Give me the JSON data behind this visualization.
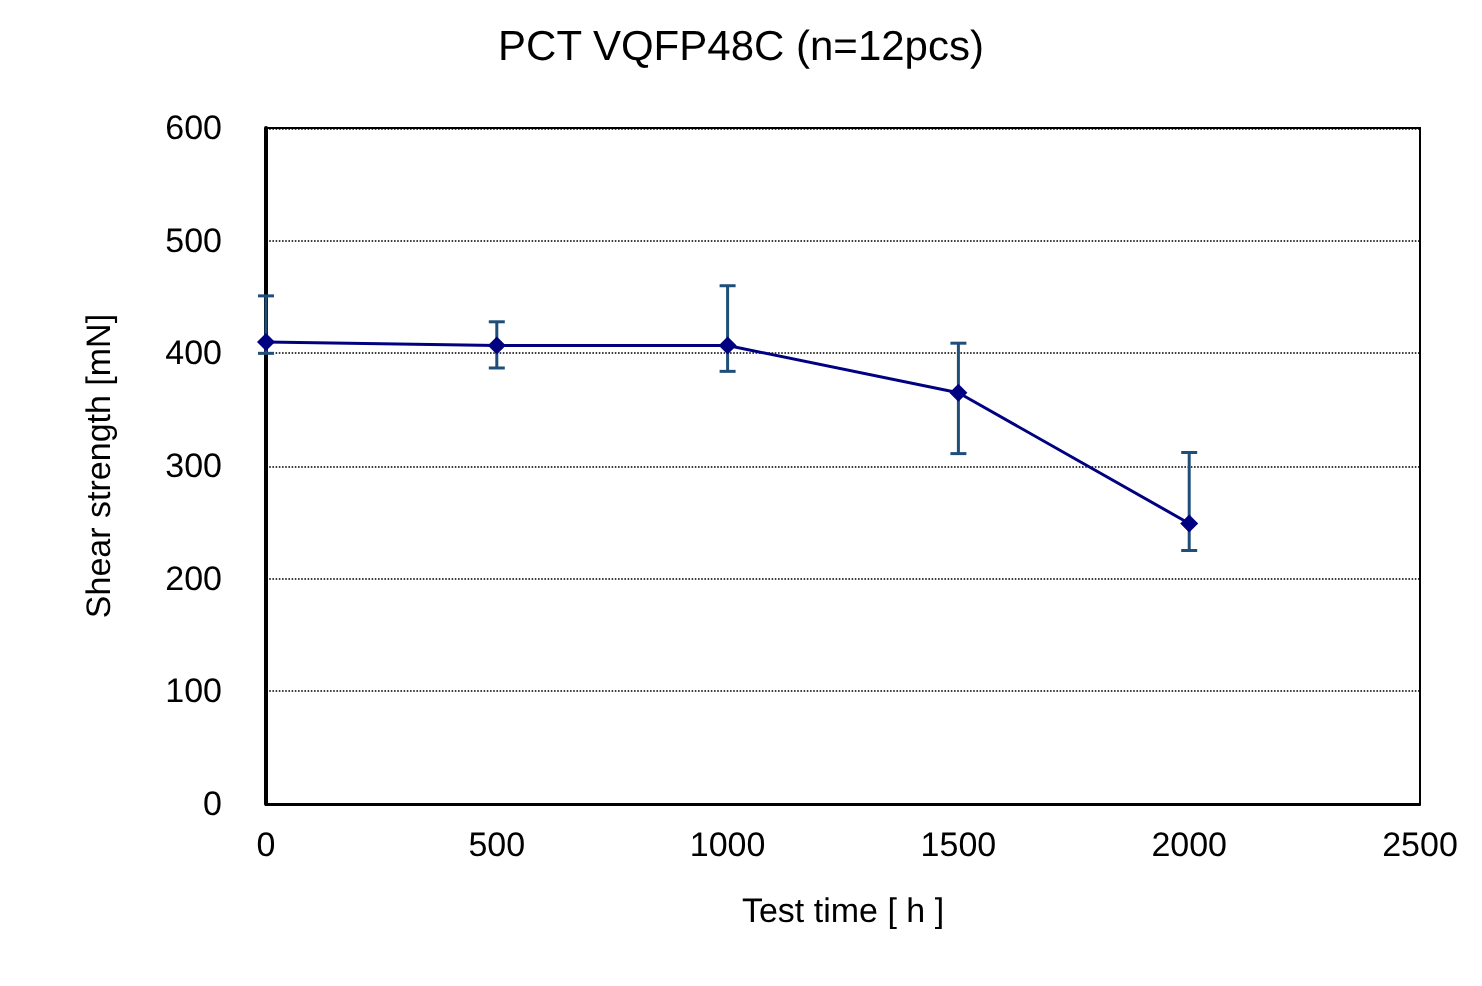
{
  "chart_data": {
    "type": "line",
    "title": "PCT VQFP48C (n=12pcs)",
    "xlabel": "Test time [ h ]",
    "ylabel": "Shear strength [mN]",
    "x": [
      0,
      500,
      1000,
      1500,
      2000
    ],
    "series": [
      {
        "color": "#000080",
        "values": [
          410,
          407,
          407,
          365,
          249
        ],
        "errors": [
          [
            400,
            451
          ],
          [
            387,
            428
          ],
          [
            384,
            460
          ],
          [
            311,
            409
          ],
          [
            225,
            312
          ]
        ]
      }
    ],
    "xlim": [
      0,
      2500
    ],
    "xticks": [
      0,
      500,
      1000,
      1500,
      2000,
      2500
    ],
    "ylim": [
      0,
      600
    ],
    "yticks": [
      0,
      100,
      200,
      300,
      400,
      500,
      600
    ],
    "grid": "y",
    "marker": "diamond",
    "line_style": "solid"
  }
}
